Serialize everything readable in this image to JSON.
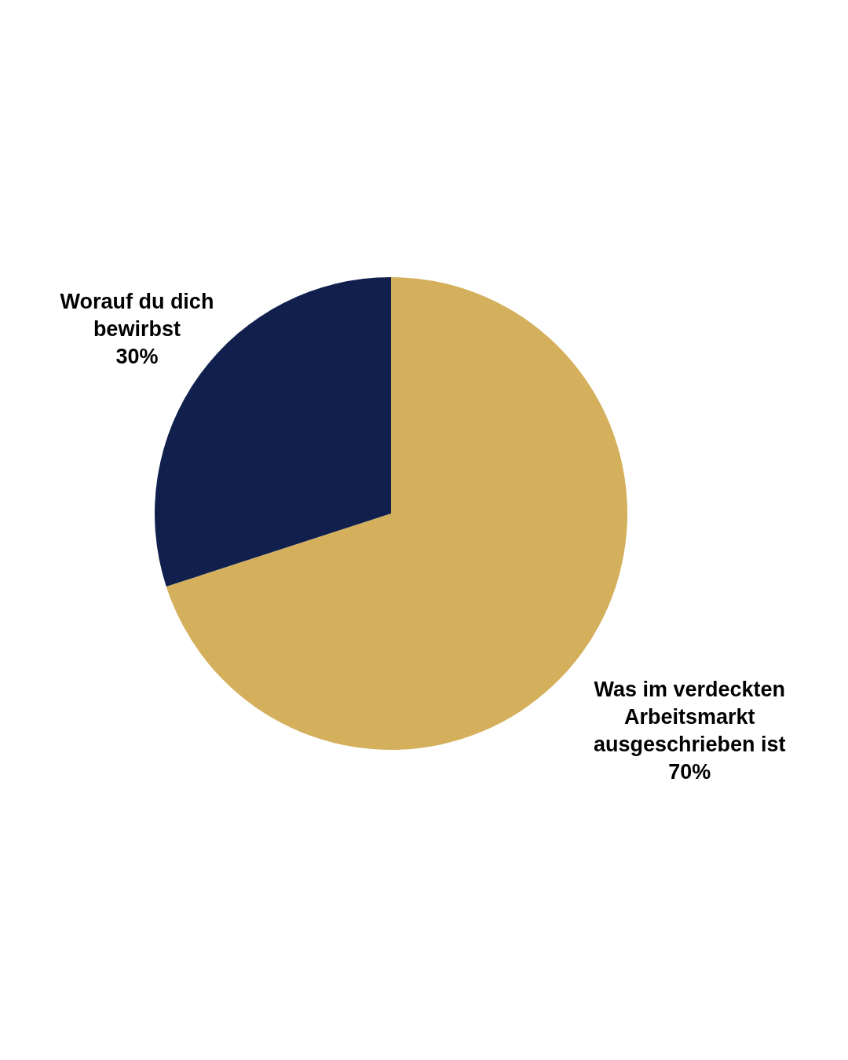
{
  "chart_data": {
    "type": "pie",
    "categories": [
      "Was im verdeckten Arbeitsmarkt ausgeschrieben ist",
      "Worauf du dich bewirbst"
    ],
    "values": [
      70,
      30
    ],
    "colors": [
      "#d4b05c",
      "#111f4d"
    ],
    "value_labels": [
      "70%",
      "30%"
    ]
  }
}
